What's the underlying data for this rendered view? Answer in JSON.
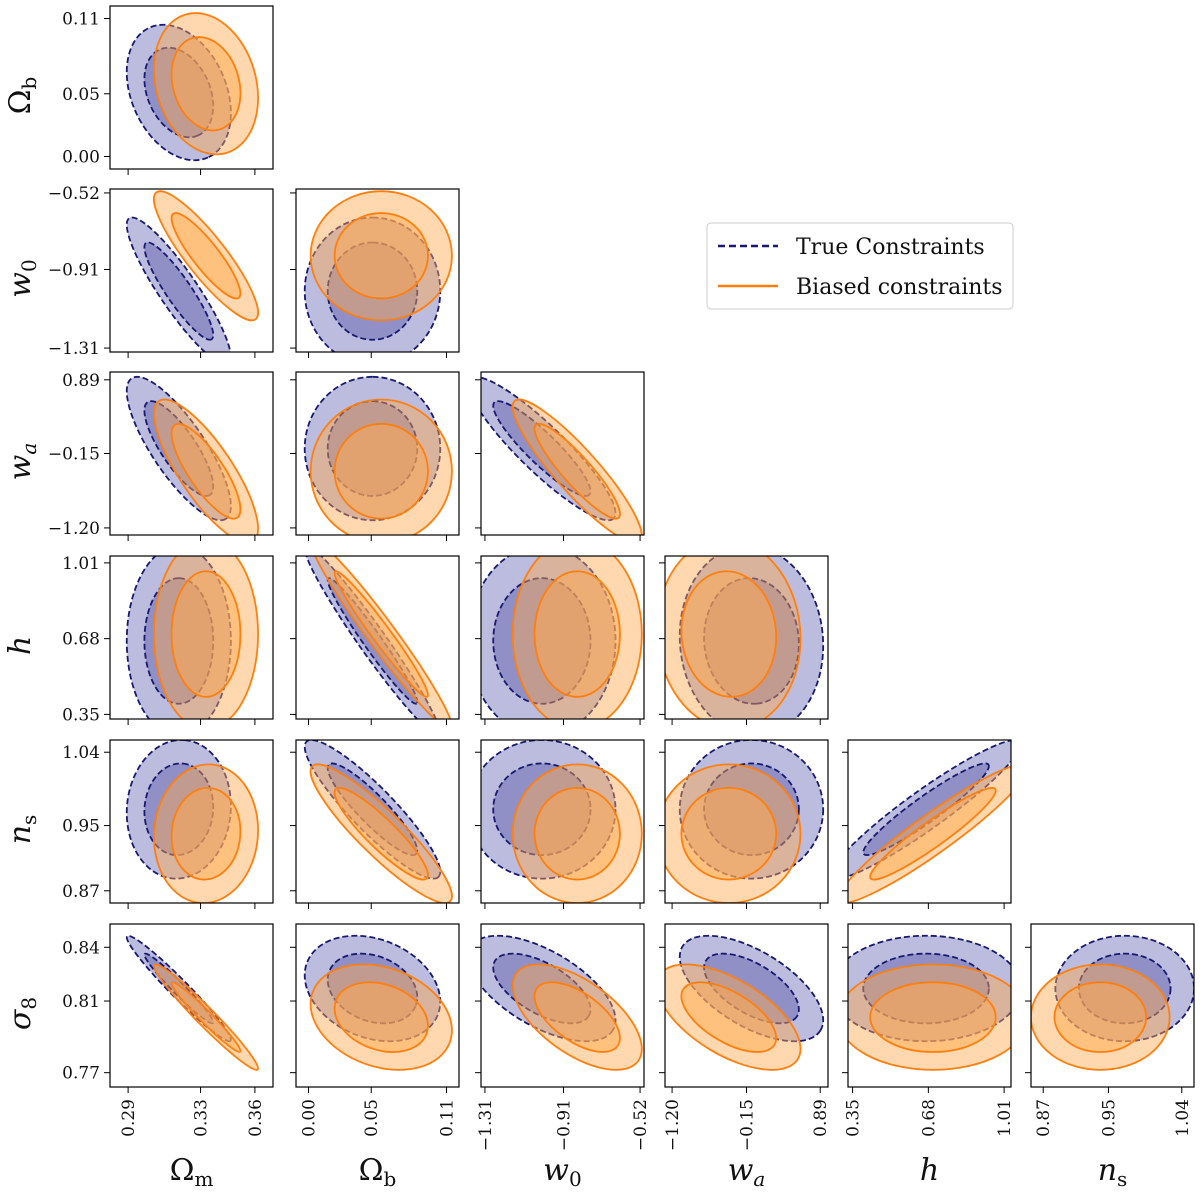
{
  "chart_data": {
    "type": "scatter",
    "subtype": "corner-plot-confidence-ellipses",
    "parameters": [
      {
        "id": "Om",
        "label": "Ωm",
        "range": [
          0.28,
          0.37
        ],
        "ticks": [
          0.29,
          0.33,
          0.36
        ],
        "tick_labels": [
          "0.29",
          "0.33",
          "0.36"
        ]
      },
      {
        "id": "Ob",
        "label": "Ωb",
        "range": [
          -0.01,
          0.12
        ],
        "ticks": [
          0.0,
          0.05,
          0.11
        ],
        "tick_labels": [
          "0.00",
          "0.05",
          "0.11"
        ]
      },
      {
        "id": "w0",
        "label": "w0",
        "range": [
          -1.33,
          -0.5
        ],
        "ticks": [
          -1.31,
          -0.91,
          -0.52
        ],
        "tick_labels": [
          "−1.31",
          "−0.91",
          "−0.52"
        ]
      },
      {
        "id": "wa",
        "label": "wa",
        "range": [
          -1.3,
          1.0
        ],
        "ticks": [
          -1.2,
          -0.15,
          0.89
        ],
        "tick_labels": [
          "−1.20",
          "−0.15",
          "0.89"
        ]
      },
      {
        "id": "h",
        "label": "h",
        "range": [
          0.33,
          1.04
        ],
        "ticks": [
          0.35,
          0.68,
          1.01
        ],
        "tick_labels": [
          "0.35",
          "0.68",
          "1.01"
        ]
      },
      {
        "id": "ns",
        "label": "ns",
        "range": [
          0.855,
          1.055
        ],
        "ticks": [
          0.87,
          0.95,
          1.04
        ],
        "tick_labels": [
          "0.87",
          "0.95",
          "1.04"
        ]
      },
      {
        "id": "s8",
        "label": "σ8",
        "range": [
          0.762,
          0.853
        ],
        "ticks": [
          0.77,
          0.81,
          0.84
        ],
        "tick_labels": [
          "0.77",
          "0.81",
          "0.84"
        ]
      }
    ],
    "series": [
      {
        "name": "True Constraints",
        "line_style": "dashed",
        "color": "#191970",
        "fill": "#6b6bb5",
        "mean": [
          0.318,
          0.051,
          -1.02,
          -0.08,
          0.67,
          0.97,
          0.817
        ],
        "sigma": [
          0.0125,
          0.0235,
          0.163,
          0.44,
          0.18,
          0.037,
          0.0128
        ],
        "corr": {
          "Ob-Om": -0.3,
          "w0-Om": -0.9,
          "wa-Om": -0.8,
          "h-Om": 0.0,
          "ns-Om": 0.05,
          "s8-Om": -0.97,
          "w0-Ob": 0.0,
          "wa-Ob": 0.0,
          "h-Ob": -0.97,
          "ns-Ob": -0.9,
          "s8-Ob": -0.25,
          "wa-w0": -0.9,
          "h-w0": 0.0,
          "ns-w0": 0.0,
          "s8-w0": -0.6,
          "h-wa": -0.05,
          "ns-wa": 0.0,
          "s8-wa": -0.6,
          "ns-h": 0.94,
          "s8-h": 0.0,
          "s8-ns": 0.0
        }
      },
      {
        "name": "Biased constraints",
        "line_style": "solid",
        "color": "#ff7f0e",
        "fill": "#ffa94d",
        "mean": [
          0.333,
          0.058,
          -0.84,
          -0.4,
          0.7,
          0.94,
          0.801
        ],
        "sigma": [
          0.0125,
          0.0245,
          0.143,
          0.44,
          0.18,
          0.037,
          0.0128
        ],
        "corr": {
          "Ob-Om": -0.2,
          "w0-Om": -0.88,
          "wa-Om": -0.8,
          "h-Om": 0.0,
          "ns-Om": 0.05,
          "s8-Om": -0.97,
          "w0-Ob": 0.0,
          "wa-Ob": 0.0,
          "h-Ob": -0.97,
          "ns-Ob": -0.9,
          "s8-Ob": -0.25,
          "wa-w0": -0.9,
          "h-w0": 0.0,
          "ns-w0": 0.0,
          "s8-w0": -0.6,
          "h-wa": -0.05,
          "ns-wa": 0.0,
          "s8-wa": -0.6,
          "ns-h": 0.94,
          "s8-h": 0.0,
          "s8-ns": 0.0
        }
      }
    ],
    "contour_levels": [
      "1σ",
      "2σ"
    ],
    "legend": {
      "position": "upper-right",
      "entries": [
        "True Constraints",
        "Biased constraints"
      ]
    }
  }
}
